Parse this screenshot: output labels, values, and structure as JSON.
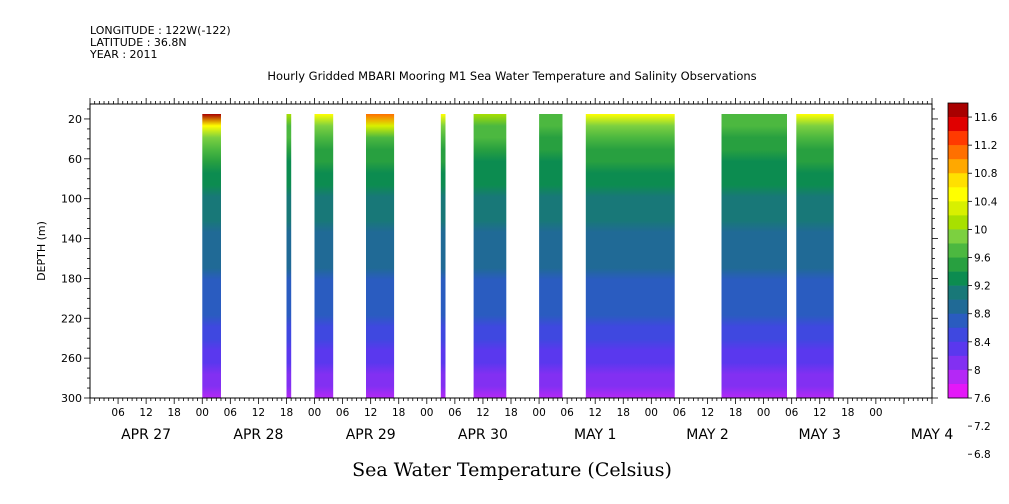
{
  "header": {
    "longitude": "LONGITUDE : 122W(-122)",
    "latitude": "LATITUDE : 36.8N",
    "year": "YEAR : 2011",
    "title": "Hourly Gridded MBARI Mooring M1 Sea Water Temperature and Salinity Observations"
  },
  "chart_data": {
    "type": "heatmap",
    "title": "Hourly Gridded MBARI Mooring M1 Sea Water Temperature and Salinity Observations",
    "variable_label": "Sea Water Temperature (Celsius)",
    "ylabel": "DEPTH (m)",
    "yticks": [
      20,
      60,
      100,
      140,
      180,
      220,
      260,
      300
    ],
    "ylim": [
      300,
      5
    ],
    "x_start": "2011-04-27 00:00",
    "x_end": "2011-05-04 12:00",
    "xticks_hours": [
      "06",
      "12",
      "18",
      "00",
      "06",
      "12",
      "18",
      "00",
      "06",
      "12",
      "18",
      "00",
      "06",
      "12",
      "18",
      "00",
      "06",
      "12",
      "18",
      "00",
      "06",
      "12",
      "18",
      "00",
      "06",
      "12",
      "18",
      "00"
    ],
    "xticks_datetime": [
      "2011-04-27 06:00",
      "2011-04-27 12:00",
      "2011-04-27 18:00",
      "2011-04-28 00:00",
      "2011-04-28 06:00",
      "2011-04-28 12:00",
      "2011-04-28 18:00",
      "2011-04-29 00:00",
      "2011-04-29 06:00",
      "2011-04-29 12:00",
      "2011-04-29 18:00",
      "2011-04-30 00:00",
      "2011-04-30 06:00",
      "2011-04-30 12:00",
      "2011-04-30 18:00",
      "2011-05-01 00:00",
      "2011-05-01 06:00",
      "2011-05-01 12:00",
      "2011-05-01 18:00",
      "2011-05-02 00:00",
      "2011-05-02 06:00",
      "2011-05-02 12:00",
      "2011-05-02 18:00",
      "2011-05-03 00:00",
      "2011-05-03 06:00",
      "2011-05-03 12:00",
      "2011-05-03 18:00",
      "2011-05-04 00:00"
    ],
    "date_labels": [
      {
        "text": "APR 27",
        "datetime": "2011-04-27 12:00"
      },
      {
        "text": "APR 28",
        "datetime": "2011-04-28 12:00"
      },
      {
        "text": "APR 29",
        "datetime": "2011-04-29 12:00"
      },
      {
        "text": "APR 30",
        "datetime": "2011-04-30 12:00"
      },
      {
        "text": "MAY  1",
        "datetime": "2011-05-01 12:00"
      },
      {
        "text": "MAY  2",
        "datetime": "2011-05-02 12:00"
      },
      {
        "text": "MAY  3",
        "datetime": "2011-05-03 12:00"
      },
      {
        "text": "MAY  4",
        "datetime": "2011-05-04 12:00"
      }
    ],
    "colorbar": {
      "levels": [
        "11.6",
        "11.2",
        "10.8",
        "10.4",
        "10",
        "9.6",
        "9.2",
        "8.8",
        "8.4",
        "8",
        "7.6",
        "7.2",
        "6.8"
      ],
      "colors": [
        "#a80000",
        "#e00000",
        "#ff3a00",
        "#ff7000",
        "#ffa800",
        "#ffe000",
        "#ffff00",
        "#d8f000",
        "#a8e000",
        "#7cd040",
        "#4cb840",
        "#28a040",
        "#0c8c50",
        "#187878",
        "#206a96",
        "#2a5cc0",
        "#3f48e0",
        "#5a38ee",
        "#8230f2",
        "#b428f6",
        "#e418f8"
      ]
    },
    "data_segments": [
      {
        "start": "2011-04-28 00:00",
        "end": "2011-04-28 04:00",
        "surface_max": 11.6
      },
      {
        "start": "2011-04-28 18:00",
        "end": "2011-04-28 19:00",
        "surface_max": 9.6
      },
      {
        "start": "2011-04-29 00:00",
        "end": "2011-04-29 04:00",
        "surface_max": 10.0
      },
      {
        "start": "2011-04-29 11:00",
        "end": "2011-04-29 17:00",
        "surface_max": 10.8
      },
      {
        "start": "2011-04-30 03:00",
        "end": "2011-04-30 04:00",
        "surface_max": 10.0
      },
      {
        "start": "2011-04-30 10:00",
        "end": "2011-04-30 17:00",
        "surface_max": 9.6
      },
      {
        "start": "2011-05-01 00:00",
        "end": "2011-05-01 05:00",
        "surface_max": 9.2
      },
      {
        "start": "2011-05-01 10:00",
        "end": "2011-05-02 05:00",
        "surface_max": 10.0
      },
      {
        "start": "2011-05-02 15:00",
        "end": "2011-05-03 05:00",
        "surface_max": 9.2
      },
      {
        "start": "2011-05-03 07:00",
        "end": "2011-05-03 15:00",
        "surface_max": 10.0
      }
    ]
  }
}
